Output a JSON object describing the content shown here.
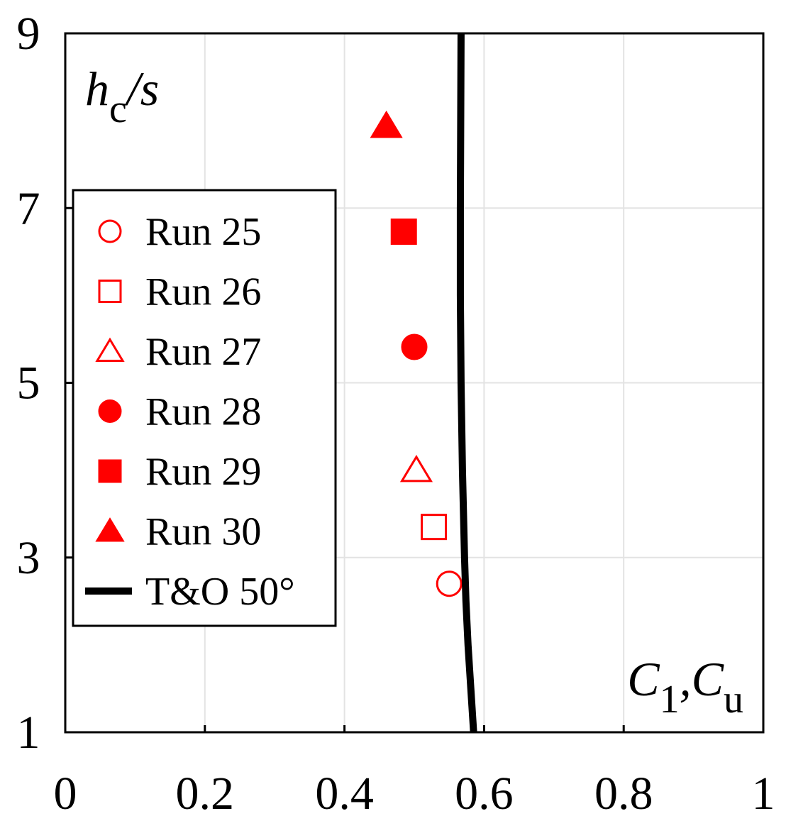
{
  "chart_data": {
    "type": "scatter",
    "ylabel": [
      {
        "text": "h"
      },
      {
        "text": "c",
        "sub": true
      },
      {
        "text": "/s"
      }
    ],
    "xlabel": [
      {
        "text": "C"
      },
      {
        "text": "1",
        "sub": true
      },
      {
        "text": ",C"
      },
      {
        "text": "u",
        "sub": true
      }
    ],
    "xlim": [
      0,
      1
    ],
    "xticks": [
      0,
      0.2,
      0.4,
      0.6,
      0.8,
      1
    ],
    "ylim": [
      1,
      9
    ],
    "yticks": [
      1,
      3,
      5,
      7,
      9
    ],
    "grid": true,
    "legend": "upper left",
    "series": [
      {
        "name": "Run 25",
        "color": "#ff0000",
        "marker": "circle",
        "filled": false,
        "x": [
          0.55
        ],
        "values": [
          2.7
        ]
      },
      {
        "name": "Run 26",
        "color": "#ff0000",
        "marker": "square",
        "filled": false,
        "x": [
          0.528
        ],
        "values": [
          3.35
        ]
      },
      {
        "name": "Run 27",
        "color": "#ff0000",
        "marker": "triangle",
        "filled": false,
        "x": [
          0.503
        ],
        "values": [
          4.0
        ]
      },
      {
        "name": "Run 28",
        "color": "#ff0000",
        "marker": "circle",
        "filled": true,
        "x": [
          0.5
        ],
        "values": [
          5.41
        ]
      },
      {
        "name": "Run 29",
        "color": "#ff0000",
        "marker": "square",
        "filled": true,
        "x": [
          0.485
        ],
        "values": [
          6.73
        ]
      },
      {
        "name": "Run 30",
        "color": "#ff0000",
        "marker": "triangle",
        "filled": true,
        "x": [
          0.46
        ],
        "values": [
          7.94
        ]
      },
      {
        "name": "T&O 50°",
        "color": "#000000",
        "style": "line",
        "x": [
          0.585,
          0.581,
          0.577,
          0.574,
          0.572,
          0.569,
          0.567,
          0.566,
          0.566,
          0.567
        ],
        "values": [
          1,
          1.5,
          2,
          2.5,
          3,
          4,
          5,
          6,
          7,
          9
        ]
      }
    ]
  }
}
